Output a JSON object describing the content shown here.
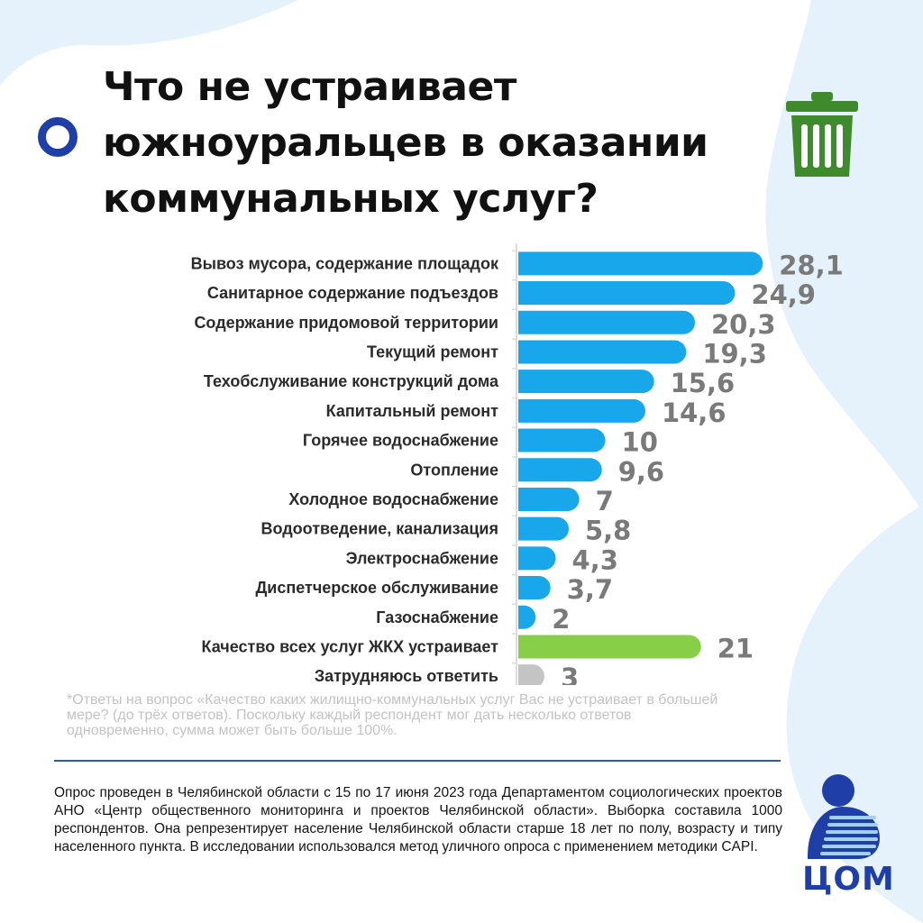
{
  "title": "Что не устраивает\nюжноуральцев в оказании\nкоммунальных услуг?",
  "colors": {
    "bar": "#17a7ea",
    "highlight_bar": "#86cf47",
    "neutral_bar": "#c4c4c4",
    "values": "#7a7a7a",
    "accent": "#1f3ea8",
    "trash": "#3f8a2c"
  },
  "icons": {
    "left": "ring-bullet-icon",
    "right": "trash-can-icon"
  },
  "chart_data": {
    "type": "bar",
    "orientation": "horizontal",
    "categories": [
      "Вывоз мусора, содержание площадок",
      "Санитарное содержание подъездов",
      "Содержание придомовой территории",
      "Текущий ремонт",
      "Техобслуживание конструкций дома",
      "Капитальный ремонт",
      "Горячее водоснабжение",
      "Отопление",
      "Холодное водоснабжение",
      "Водоотведение, канализация",
      "Электроснабжение",
      "Диспетчерское обслуживание",
      "Газоснабжение",
      "Качество всех услуг ЖКХ устраивает",
      "Затрудняюсь ответить"
    ],
    "values": [
      28.1,
      24.9,
      20.3,
      19.3,
      15.6,
      14.6,
      10,
      9.6,
      7,
      5.8,
      4.3,
      3.7,
      2,
      21,
      3
    ],
    "value_labels": [
      "28,1",
      "24,9",
      "20,3",
      "19,3",
      "15,6",
      "14,6",
      "10",
      "9,6",
      "7",
      "5,8",
      "4,3",
      "3,7",
      "2",
      "21",
      "3"
    ],
    "bar_colors": [
      "bar",
      "bar",
      "bar",
      "bar",
      "bar",
      "bar",
      "bar",
      "bar",
      "bar",
      "bar",
      "bar",
      "bar",
      "bar",
      "highlight_bar",
      "neutral_bar"
    ],
    "xlim": [
      0,
      30
    ],
    "grid": false,
    "legend": "none"
  },
  "footnote": "*Ответы на вопрос «Качество каких жилищно-коммунальных услуг Вас не устраивает в большей мере? (до трёх ответов). Поскольку каждый респондент мог дать несколько ответов одновременно, сумма может быть больше 100%.",
  "methodology": "Опрос проведен в Челябинской области с 15 по 17 июня 2023 года Департаментом социологических проектов АНО «Центр общественного мониторинга и проектов Челябинской области». Выборка составила 1000 респондентов. Она репрезентирует население Челябинской области старше 18 лет по полу, возрасту и типу населенного пункта. В исследовании использовался метод уличного опроса с применением методики CAPI.",
  "logo": {
    "text": "ЦОМ"
  }
}
